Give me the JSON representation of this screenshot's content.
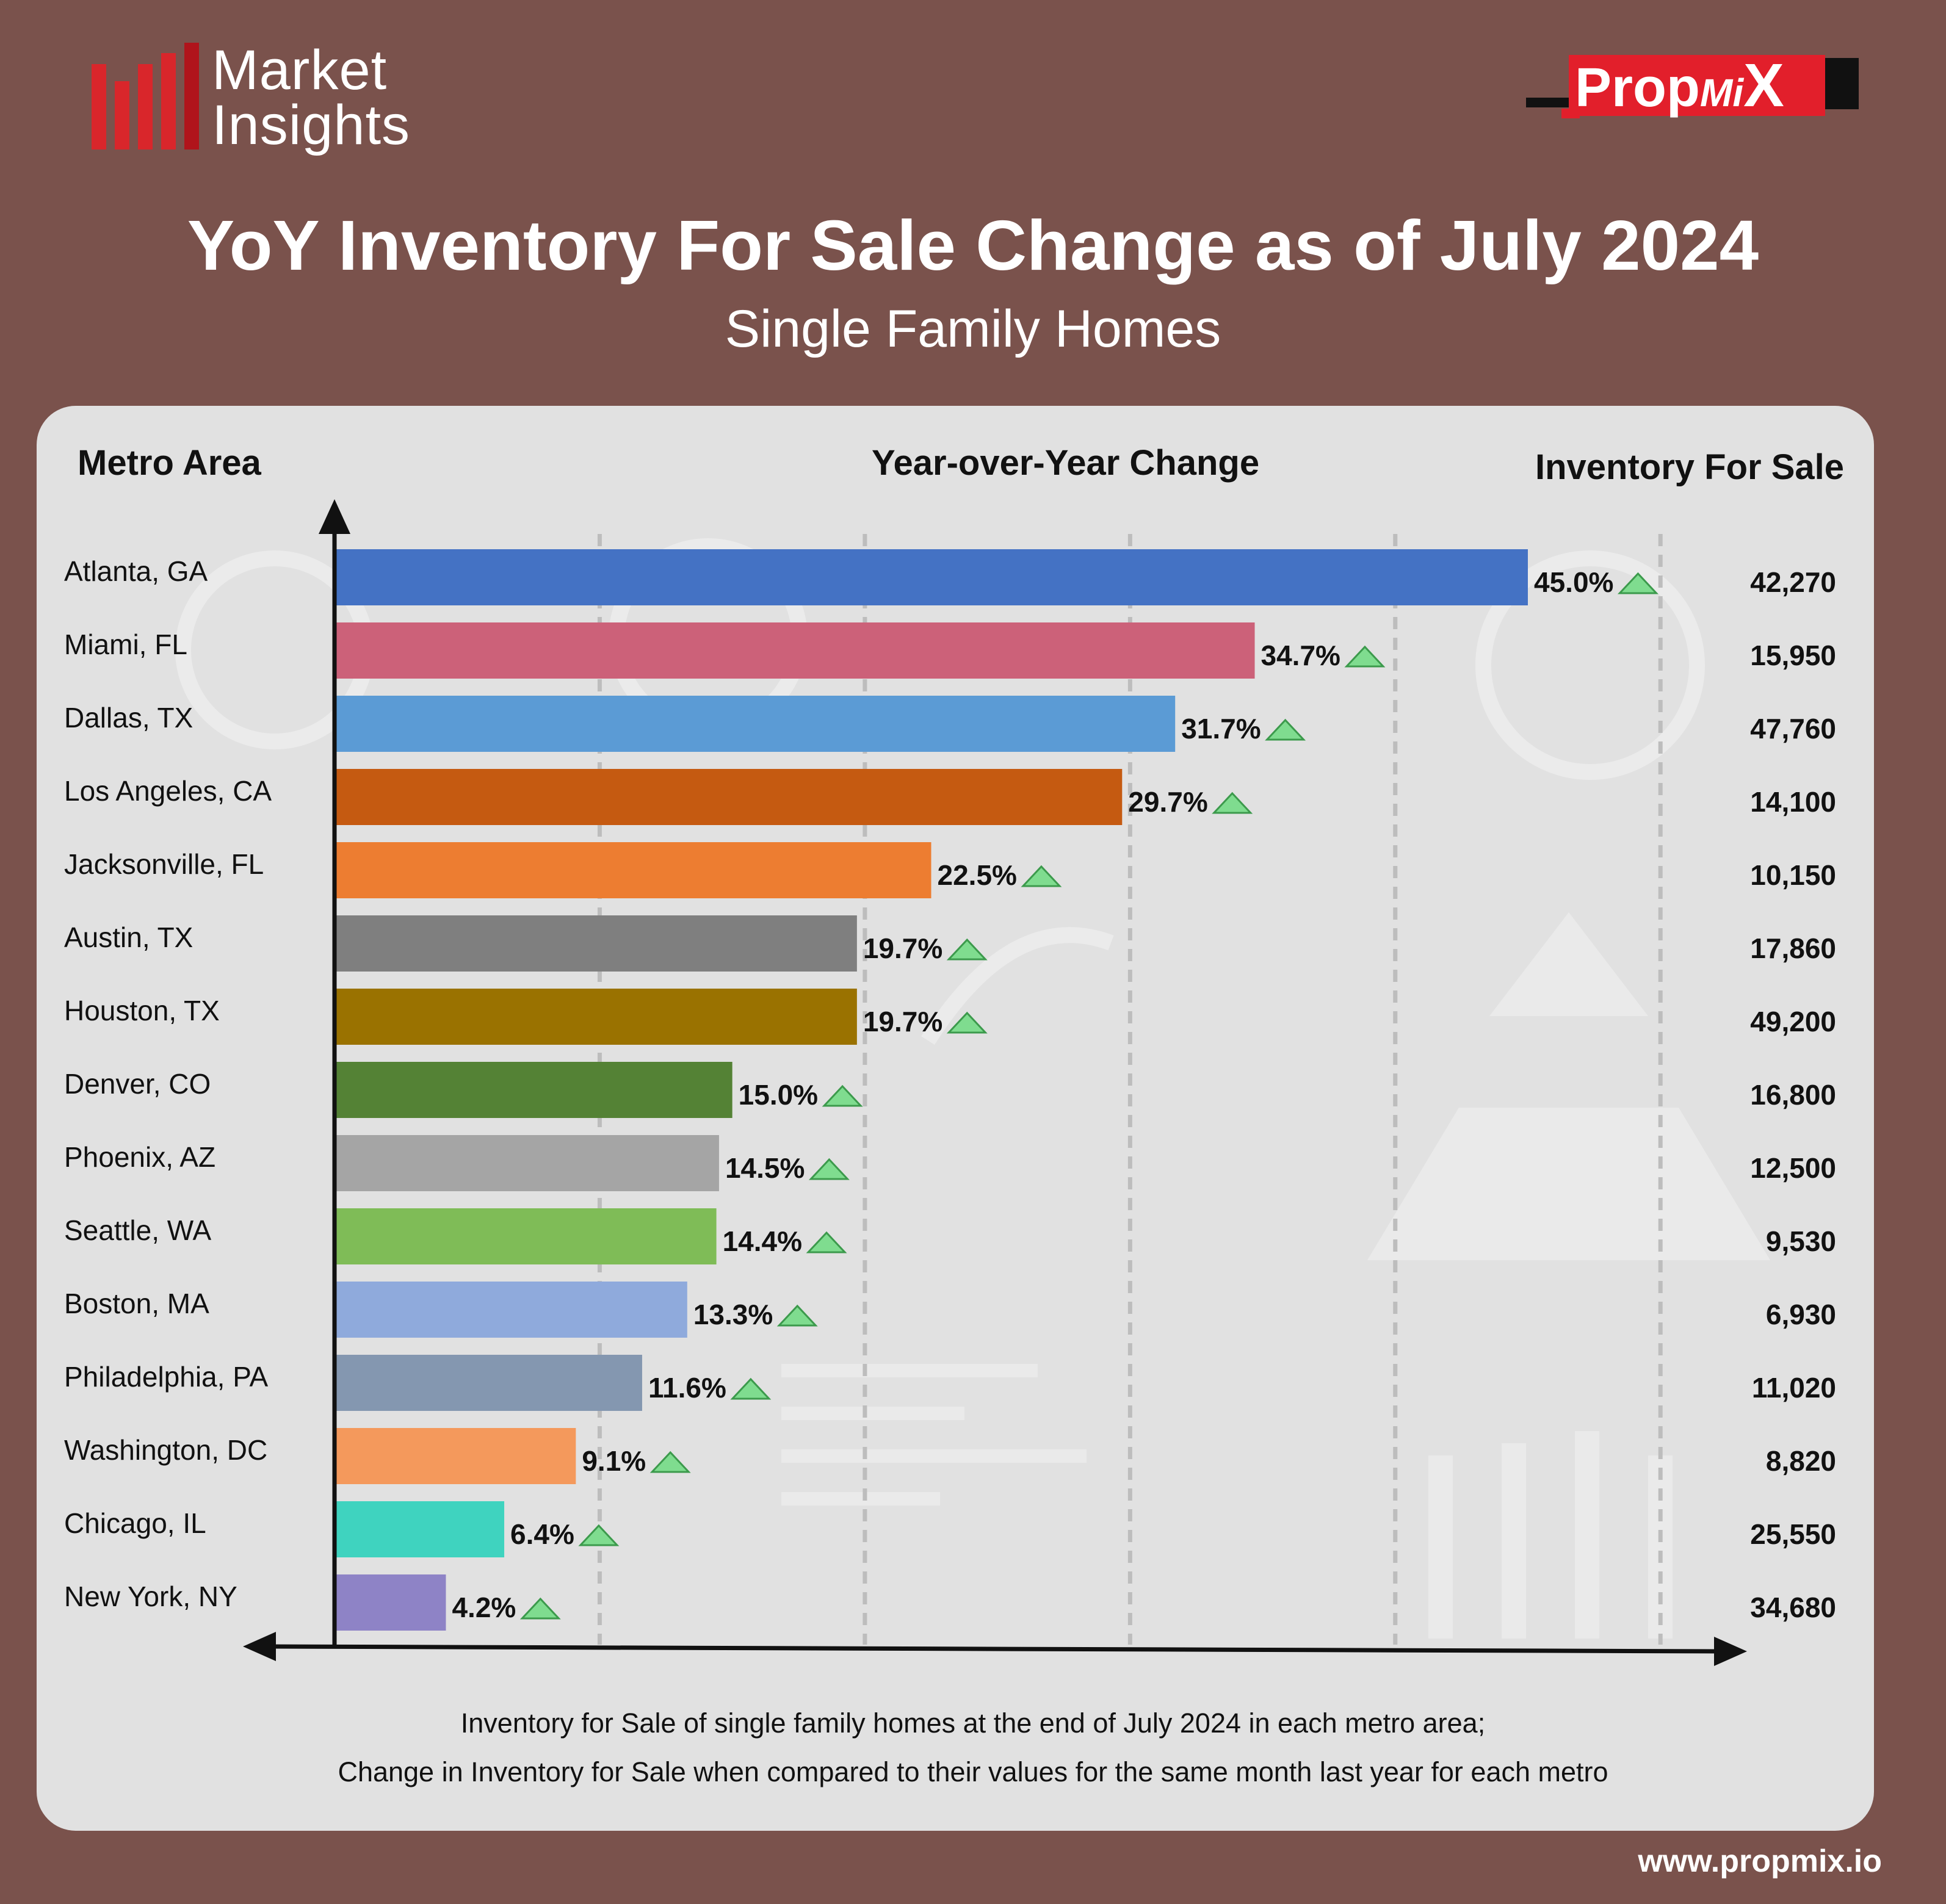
{
  "brand": {
    "line1": "Market",
    "line2": "Insights",
    "bar_color": "#d9262b"
  },
  "logo": {
    "prefix": "Prop",
    "mid": "Mi",
    "suffix": "X",
    "accent": "#e21f2b"
  },
  "header": {
    "title": "YoY Inventory For Sale Change as of July 2024",
    "subtitle": "Single Family Homes"
  },
  "columns": {
    "metro": "Metro Area",
    "change": "Year-over-Year Change",
    "inventory": "Inventory For Sale"
  },
  "footnote": {
    "line1": "Inventory for Sale of single family homes at the end of July 2024 in each metro area;",
    "line2": "Change in Inventory for Sale when compared to their values for the same month last year for each metro"
  },
  "website": "www.propmix.io",
  "chart_data": {
    "type": "bar",
    "orientation": "horizontal",
    "unit": "%",
    "xlim": [
      0,
      50
    ],
    "grid": true,
    "trend_icon": "up-triangle-icon",
    "trend_color": "#7fdc8f",
    "categories": [
      "Atlanta, GA",
      "Miami, FL",
      "Dallas, TX",
      "Los Angeles, CA",
      "Jacksonville, FL",
      "Austin, TX",
      "Houston, TX",
      "Denver, CO",
      "Phoenix, AZ",
      "Seattle, WA",
      "Boston, MA",
      "Philadelphia, PA",
      "Washington, DC",
      "Chicago, IL",
      "New York, NY"
    ],
    "values": [
      45.0,
      34.7,
      31.7,
      29.7,
      22.5,
      19.7,
      19.7,
      15.0,
      14.5,
      14.4,
      13.3,
      11.6,
      9.1,
      6.4,
      4.2
    ],
    "value_labels": [
      "45.0%",
      "34.7%",
      "31.7%",
      "29.7%",
      "22.5%",
      "19.7%",
      "19.7%",
      "15.0%",
      "14.5%",
      "14.4%",
      "13.3%",
      "11.6%",
      "9.1%",
      "6.4%",
      "4.2%"
    ],
    "inventory": [
      "42,270",
      "15,950",
      "47,760",
      "14,100",
      "10,150",
      "17,860",
      "49,200",
      "16,800",
      "12,500",
      "9,530",
      "6,930",
      "11,020",
      "8,820",
      "25,550",
      "34,680"
    ],
    "colors": [
      "#4472c4",
      "#cc6179",
      "#5b9bd5",
      "#c55a11",
      "#ed7d31",
      "#7f7f7f",
      "#9a7200",
      "#548235",
      "#a5a5a5",
      "#7fbc57",
      "#8faadc",
      "#8497b0",
      "#f4995c",
      "#3fd3bf",
      "#8e83c6"
    ]
  }
}
